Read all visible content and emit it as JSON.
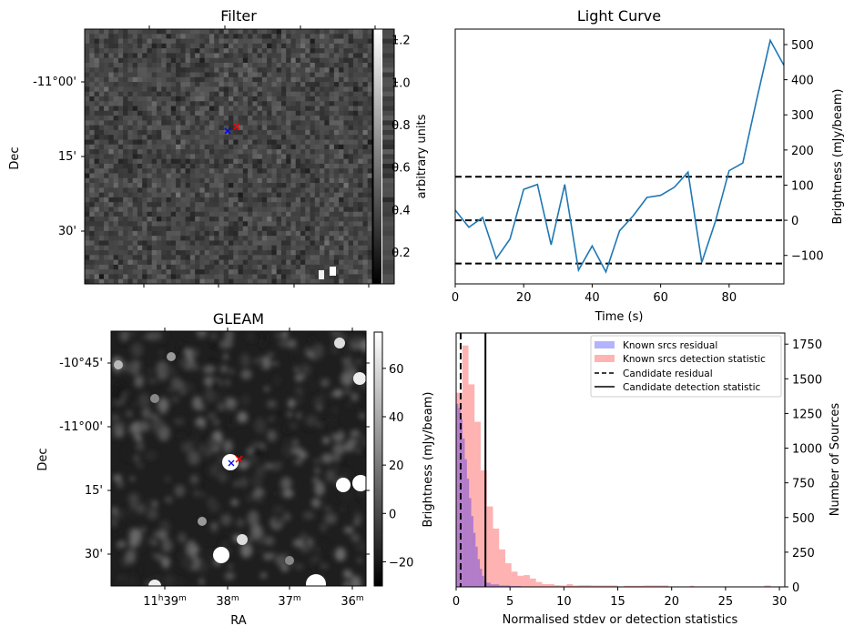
{
  "panels": {
    "filter": {
      "title": "Filter",
      "ylabel": "Dec",
      "yticks": [
        "-11°00'",
        "15'",
        "30'"
      ],
      "colorbar": {
        "label": "arbitrary units",
        "ticks": [
          "0.2",
          "0.4",
          "0.6",
          "0.8",
          "1.0",
          "1.2"
        ],
        "range": [
          0.05,
          1.25
        ]
      },
      "markers": [
        {
          "name": "blue-cross",
          "color": "#0000ff"
        },
        {
          "name": "red-cross",
          "color": "#ff0000"
        }
      ]
    },
    "gleam": {
      "title": "GLEAM",
      "xlabel": "RA",
      "ylabel": "Dec",
      "xticks": [
        {
          "main": "11",
          "sup1": "h",
          "mid": "39",
          "sup2": "m"
        },
        {
          "main": "",
          "sup1": "",
          "mid": "38",
          "sup2": "m"
        },
        {
          "main": "",
          "sup1": "",
          "mid": "37",
          "sup2": "m"
        },
        {
          "main": "",
          "sup1": "",
          "mid": "36",
          "sup2": "m"
        }
      ],
      "yticks": [
        "-10°45'",
        "-11°00'",
        "15'",
        "30'"
      ],
      "colorbar": {
        "label": "Brightness (mJy/beam)",
        "ticks": [
          "−20",
          "0",
          "20",
          "40",
          "60"
        ],
        "range": [
          -30,
          75
        ]
      },
      "markers": [
        {
          "name": "blue-cross",
          "color": "#0000ff"
        },
        {
          "name": "red-cross",
          "color": "#ff0000"
        }
      ]
    }
  },
  "chart_data": [
    {
      "type": "line",
      "title": "Light Curve",
      "xlabel": "Time (s)",
      "ylabel": "Brightness (mJy/beam)",
      "xlim": [
        0,
        96
      ],
      "ylim": [
        -181,
        544
      ],
      "xticks": [
        0,
        20,
        40,
        60,
        80
      ],
      "yticks": [
        -100,
        0,
        100,
        200,
        300,
        400,
        500
      ],
      "ytick_labels": [
        "−100",
        "0",
        "100",
        "200",
        "300",
        "400",
        "500"
      ],
      "yaxis_side": "right",
      "grid": false,
      "series": [
        {
          "name": "light curve",
          "color": "#1f77b4",
          "x": [
            0,
            4,
            8,
            12,
            16,
            20,
            24,
            28,
            32,
            36,
            40,
            44,
            48,
            52,
            56,
            60,
            64,
            68,
            72,
            76,
            80,
            84,
            88,
            92,
            96
          ],
          "y": [
            29,
            -20,
            8,
            -109,
            -53,
            88,
            102,
            -70,
            102,
            -142,
            -73,
            -147,
            -30,
            13,
            65,
            71,
            94,
            137,
            -120,
            -3,
            141,
            163,
            341,
            512,
            441
          ]
        }
      ],
      "hlines": [
        {
          "y": 124,
          "style": "dashed",
          "color": "#000000"
        },
        {
          "y": 0,
          "style": "dashed",
          "color": "#000000"
        },
        {
          "y": -123,
          "style": "dashed",
          "color": "#000000"
        }
      ]
    },
    {
      "type": "bar",
      "title": "",
      "xlabel": "Normalised stdev or detection statistics",
      "ylabel": "Number of Sources",
      "xlim": [
        0,
        30.5
      ],
      "ylim": [
        0,
        1830
      ],
      "xticks": [
        0,
        5,
        10,
        15,
        20,
        25,
        30
      ],
      "yticks": [
        0,
        250,
        500,
        750,
        1000,
        1250,
        1500,
        1750
      ],
      "yaxis_side": "right",
      "legend_position": "top-right",
      "series": [
        {
          "name": "Known srcs residual",
          "color": "#0000ff",
          "alpha": 0.3,
          "bin_edges": [
            0,
            0.2,
            0.4,
            0.6,
            0.8,
            1.0,
            1.2,
            1.4,
            1.6,
            1.8,
            2.0,
            2.2,
            2.4,
            2.6,
            2.8,
            3.2,
            4.0,
            5.0,
            6.0
          ],
          "values": [
            1320,
            1290,
            1210,
            1070,
            920,
            780,
            640,
            510,
            390,
            290,
            200,
            130,
            80,
            50,
            30,
            18,
            10,
            6
          ]
        },
        {
          "name": "Known srcs detection statistic",
          "color": "#ff0000",
          "alpha": 0.3,
          "bin_edges": [
            0,
            0.57,
            1.14,
            1.71,
            2.28,
            2.85,
            3.42,
            3.99,
            4.56,
            5.13,
            5.7,
            6.27,
            6.84,
            7.41,
            7.98,
            8.55,
            9.12,
            9.69,
            10.26,
            10.83,
            11.4,
            12.54,
            15.0,
            15.6,
            17.4,
            19.7,
            21.7,
            22.1,
            28.6,
            29.2
          ],
          "values": [
            1400,
            1740,
            1460,
            1190,
            840,
            580,
            420,
            270,
            170,
            110,
            80,
            85,
            60,
            35,
            20,
            20,
            12,
            10,
            20,
            10,
            12,
            10,
            0,
            8,
            10,
            0,
            8,
            0,
            10
          ]
        }
      ],
      "vlines": [
        {
          "name": "Candidate residual",
          "x": 0.42,
          "style": "dashed",
          "color": "#000000"
        },
        {
          "name": "Candidate detection statistic",
          "x": 2.72,
          "style": "solid",
          "color": "#000000"
        }
      ],
      "legend": [
        {
          "label": "Known srcs residual",
          "kind": "patch",
          "color": "#b3b3ff"
        },
        {
          "label": "Known srcs detection statistic",
          "kind": "patch",
          "color": "#ffb3b3"
        },
        {
          "label": "Candidate residual",
          "kind": "dashed",
          "color": "#000000"
        },
        {
          "label": "Candidate detection statistic",
          "kind": "solid",
          "color": "#000000"
        }
      ]
    }
  ]
}
